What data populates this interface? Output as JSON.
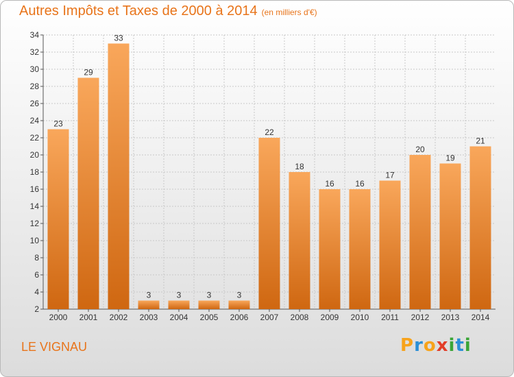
{
  "header": {
    "title": "Autres Impôts et Taxes de 2000 à 2014",
    "subtitle": "(en milliers d'€)"
  },
  "footer": {
    "place": "LE VIGNAU",
    "logo": {
      "letters": [
        "P",
        "r",
        "o",
        "x",
        "i",
        "t",
        "i"
      ],
      "colors": [
        "#f7a31b",
        "#2b8fd6",
        "#f7a31b",
        "#e23d28",
        "#3aa537",
        "#2b8fd6",
        "#3aa537"
      ]
    }
  },
  "chart_data": {
    "type": "bar",
    "categories": [
      "2000",
      "2001",
      "2002",
      "2003",
      "2004",
      "2005",
      "2006",
      "2007",
      "2008",
      "2009",
      "2010",
      "2011",
      "2012",
      "2013",
      "2014"
    ],
    "values": [
      23,
      29,
      33,
      3,
      3,
      3,
      3,
      22,
      18,
      16,
      16,
      17,
      20,
      19,
      21
    ],
    "ylim": [
      2,
      34
    ],
    "yticks": [
      2,
      4,
      6,
      8,
      10,
      12,
      14,
      16,
      18,
      20,
      22,
      24,
      26,
      28,
      30,
      32,
      34
    ],
    "grid": true,
    "title": "Autres Impôts et Taxes de 2000 à 2014",
    "subtitle": "(en milliers d'€)",
    "xlabel": "",
    "ylabel": "",
    "colors": {
      "bar_light": "#f9a75b",
      "bar_dark": "#cf6711",
      "grid": "#c8c8c8",
      "axis": "#555555"
    }
  }
}
